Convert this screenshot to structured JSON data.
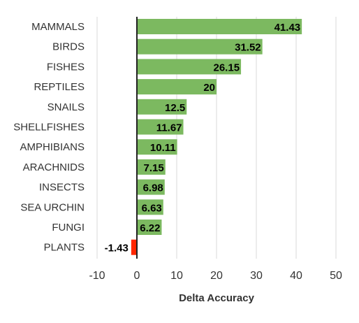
{
  "chart_data": {
    "type": "bar",
    "orientation": "horizontal",
    "categories": [
      "MAMMALS",
      "BIRDS",
      "FISHES",
      "REPTILES",
      "SNAILS",
      "SHELLFISHES",
      "AMPHIBIANS",
      "ARACHNIDS",
      "INSECTS",
      "SEA URCHIN",
      "FUNGI",
      "PLANTS"
    ],
    "values": [
      41.43,
      31.52,
      26.15,
      20,
      12.5,
      11.67,
      10.11,
      7.15,
      6.98,
      6.63,
      6.22,
      -1.43
    ],
    "value_labels": [
      "41.43",
      "31.52",
      "26.15",
      "20",
      "12.5",
      "11.67",
      "10.11",
      "7.15",
      "6.98",
      "6.63",
      "6.22",
      "-1.43"
    ],
    "xlabel": "Delta Accuracy",
    "xlim": [
      -10,
      50
    ],
    "xticks": [
      -10,
      0,
      10,
      20,
      30,
      40,
      50
    ],
    "grid": true,
    "legend": "none",
    "colors": {
      "positive": "#7cb960",
      "negative": "#ff2600"
    }
  }
}
